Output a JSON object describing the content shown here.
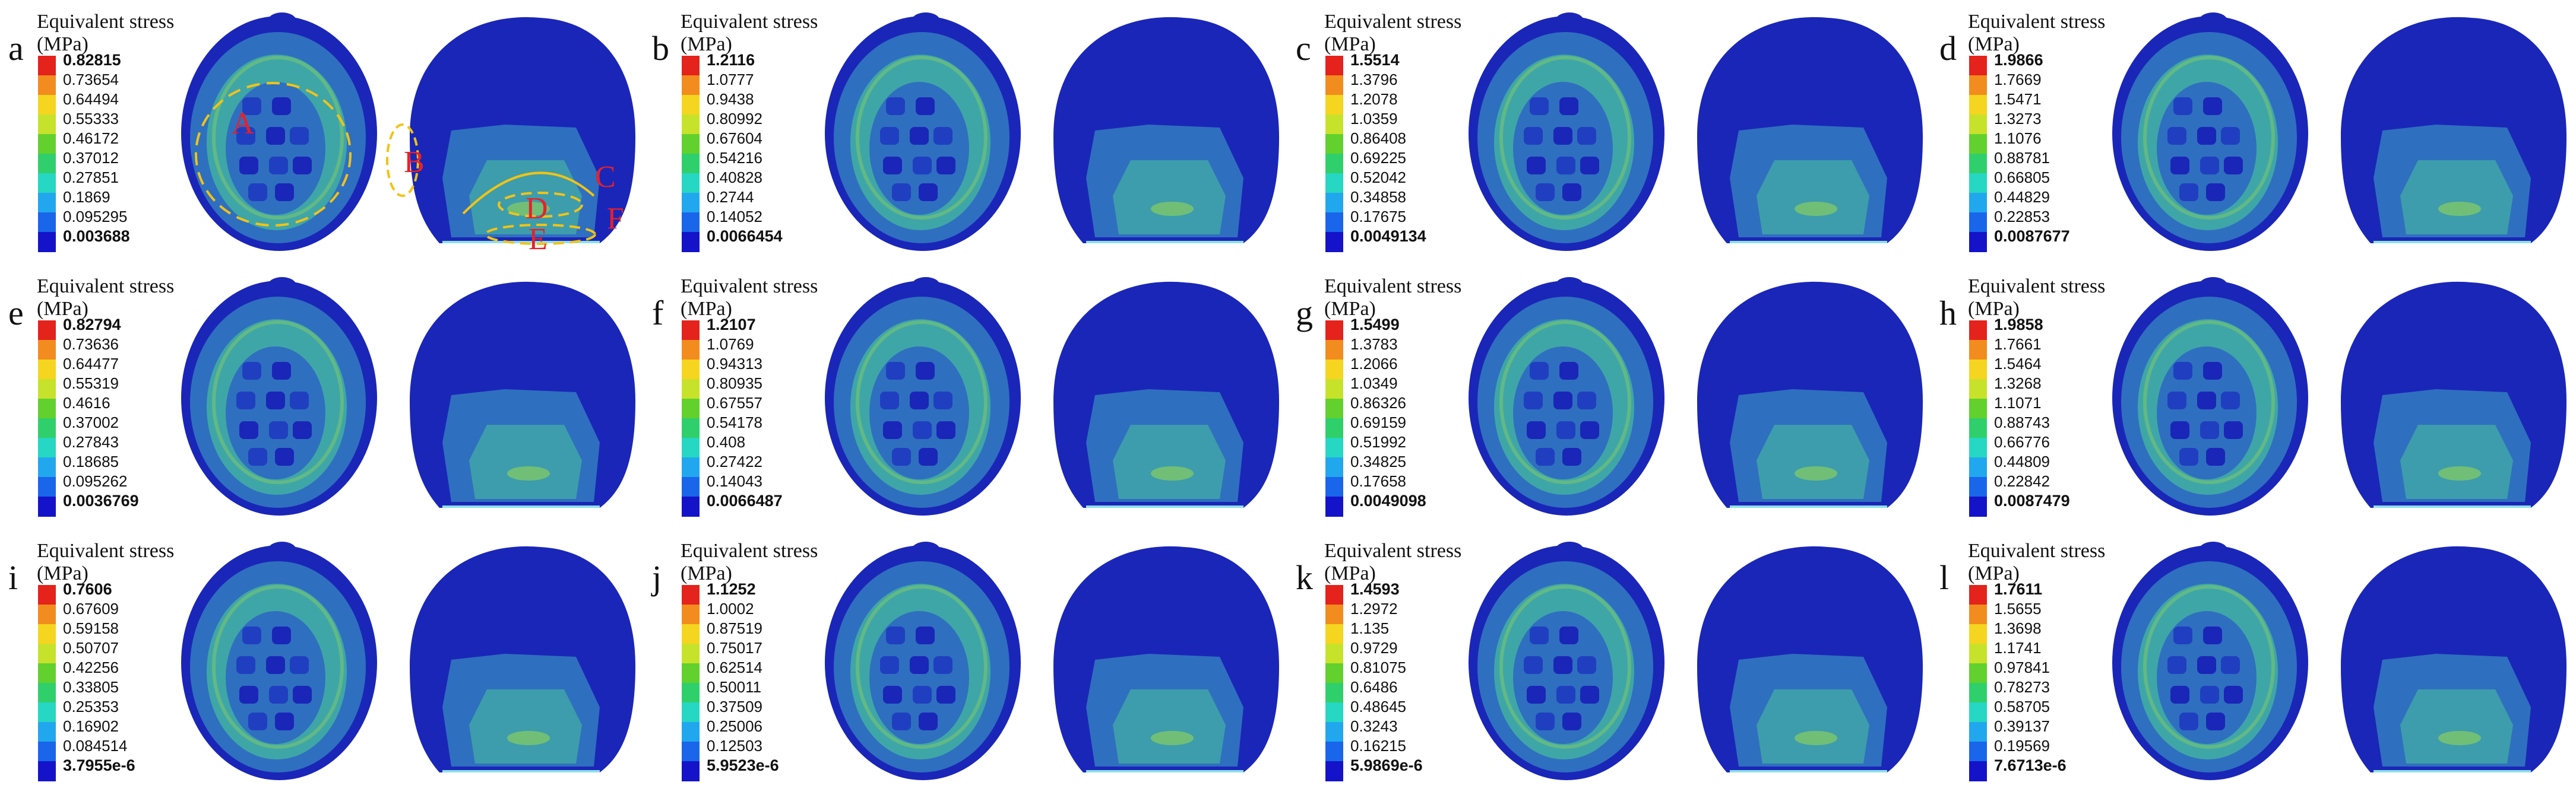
{
  "panels": [
    {
      "letter": "a",
      "title": "Equivalent stress",
      "unit": "(MPa)",
      "legend": [
        "0.82815",
        "0.73654",
        "0.64494",
        "0.55333",
        "0.46172",
        "0.37012",
        "0.27851",
        "0.1869",
        "0.095295",
        "0.003688"
      ]
    },
    {
      "letter": "b",
      "title": "Equivalent stress",
      "unit": "(MPa)",
      "legend": [
        "1.2116",
        "1.0777",
        "0.9438",
        "0.80992",
        "0.67604",
        "0.54216",
        "0.40828",
        "0.2744",
        "0.14052",
        "0.0066454"
      ]
    },
    {
      "letter": "c",
      "title": "Equivalent stress",
      "unit": "(MPa)",
      "legend": [
        "1.5514",
        "1.3796",
        "1.2078",
        "1.0359",
        "0.86408",
        "0.69225",
        "0.52042",
        "0.34858",
        "0.17675",
        "0.0049134"
      ]
    },
    {
      "letter": "d",
      "title": "Equivalent stress",
      "unit": "(MPa)",
      "legend": [
        "1.9866",
        "1.7669",
        "1.5471",
        "1.3273",
        "1.1076",
        "0.88781",
        "0.66805",
        "0.44829",
        "0.22853",
        "0.0087677"
      ]
    },
    {
      "letter": "e",
      "title": "Equivalent stress",
      "unit": "(MPa)",
      "legend": [
        "0.82794",
        "0.73636",
        "0.64477",
        "0.55319",
        "0.4616",
        "0.37002",
        "0.27843",
        "0.18685",
        "0.095262",
        "0.0036769"
      ]
    },
    {
      "letter": "f",
      "title": "Equivalent stress",
      "unit": "(MPa)",
      "legend": [
        "1.2107",
        "1.0769",
        "0.94313",
        "0.80935",
        "0.67557",
        "0.54178",
        "0.408",
        "0.27422",
        "0.14043",
        "0.0066487"
      ]
    },
    {
      "letter": "g",
      "title": "Equivalent stress",
      "unit": "(MPa)",
      "legend": [
        "1.5499",
        "1.3783",
        "1.2066",
        "1.0349",
        "0.86326",
        "0.69159",
        "0.51992",
        "0.34825",
        "0.17658",
        "0.0049098"
      ]
    },
    {
      "letter": "h",
      "title": "Equivalent stress",
      "unit": "(MPa)",
      "legend": [
        "1.9858",
        "1.7661",
        "1.5464",
        "1.3268",
        "1.1071",
        "0.88743",
        "0.66776",
        "0.44809",
        "0.22842",
        "0.0087479"
      ]
    },
    {
      "letter": "i",
      "title": "Equivalent stress",
      "unit": "(MPa)",
      "legend": [
        "0.7606",
        "0.67609",
        "0.59158",
        "0.50707",
        "0.42256",
        "0.33805",
        "0.25353",
        "0.16902",
        "0.084514",
        "3.7955e-6"
      ]
    },
    {
      "letter": "j",
      "title": "Equivalent stress",
      "unit": "(MPa)",
      "legend": [
        "1.1252",
        "1.0002",
        "0.87519",
        "0.75017",
        "0.62514",
        "0.50011",
        "0.37509",
        "0.25006",
        "0.12503",
        "5.9523e-6"
      ]
    },
    {
      "letter": "k",
      "title": "Equivalent stress",
      "unit": "(MPa)",
      "legend": [
        "1.4593",
        "1.2972",
        "1.135",
        "0.9729",
        "0.81075",
        "0.6486",
        "0.48645",
        "0.3243",
        "0.16215",
        "5.9869e-6"
      ]
    },
    {
      "letter": "l",
      "title": "Equivalent stress",
      "unit": "(MPa)",
      "legend": [
        "1.7611",
        "1.5655",
        "1.3698",
        "1.1741",
        "0.97841",
        "0.78273",
        "0.58705",
        "0.39137",
        "0.19569",
        "7.6713e-6"
      ]
    }
  ],
  "annotations": {
    "A": "A",
    "B": "B",
    "C": "C",
    "D": "D",
    "E": "E",
    "F": "F"
  },
  "colors": {
    "legend_scale": [
      "#e3231c",
      "#f28c1e",
      "#f5d51f",
      "#c7e22a",
      "#62d12e",
      "#2fd06b",
      "#26d7c3",
      "#21a7ee",
      "#1966ea",
      "#1413c9"
    ],
    "model_blue": "#1a26b8",
    "model_mid": "#2f6fbf",
    "model_teal": "#3fa6a8",
    "model_green": "#7ec86a",
    "annotation_red": "#e8202a",
    "annotation_yellow": "#f2c314"
  }
}
